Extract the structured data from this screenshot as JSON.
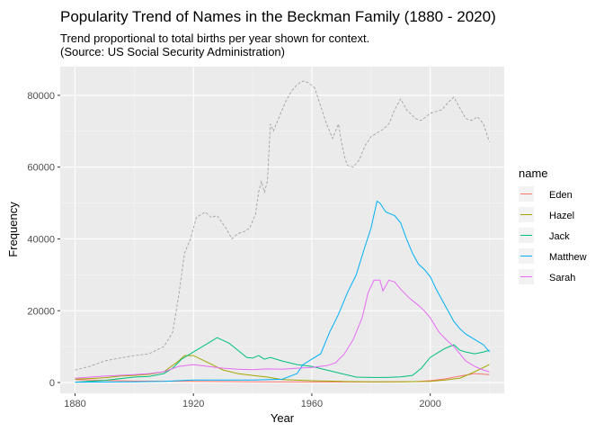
{
  "chart_data": {
    "type": "line",
    "title": "Popularity Trend of Names in the Beckman Family (1880 - 2020)",
    "subtitle_lines": [
      "Trend proportional to total births per year shown for context.",
      "(Source: US Social Security Administration)"
    ],
    "xlabel": "Year",
    "ylabel": "Frequency",
    "xlim": [
      1875,
      2025
    ],
    "ylim": [
      -3000,
      88000
    ],
    "x_ticks": [
      1880,
      1920,
      1960,
      2000
    ],
    "y_ticks": [
      0,
      20000,
      40000,
      60000,
      80000
    ],
    "y_tick_labels": [
      "0",
      "20000",
      "40000",
      "60000",
      "80000"
    ],
    "grid": true,
    "legend": {
      "title": "name",
      "position": "right"
    },
    "context_series": {
      "style": "dashed",
      "color": "#999999",
      "points": [
        [
          1880,
          3500
        ],
        [
          1885,
          4500
        ],
        [
          1890,
          6000
        ],
        [
          1895,
          6800
        ],
        [
          1900,
          7500
        ],
        [
          1905,
          8000
        ],
        [
          1910,
          10000
        ],
        [
          1913,
          14000
        ],
        [
          1915,
          24000
        ],
        [
          1917,
          36000
        ],
        [
          1919,
          40000
        ],
        [
          1921,
          46000
        ],
        [
          1924,
          47500
        ],
        [
          1926,
          46000
        ],
        [
          1928,
          46500
        ],
        [
          1931,
          43000
        ],
        [
          1933,
          40000
        ],
        [
          1935,
          41500
        ],
        [
          1937,
          42000
        ],
        [
          1939,
          43000
        ],
        [
          1941,
          47000
        ],
        [
          1942,
          53000
        ],
        [
          1943,
          56000
        ],
        [
          1944,
          53000
        ],
        [
          1945,
          56000
        ],
        [
          1946,
          72000
        ],
        [
          1947,
          70000
        ],
        [
          1949,
          74000
        ],
        [
          1951,
          78000
        ],
        [
          1953,
          81000
        ],
        [
          1955,
          83000
        ],
        [
          1957,
          84000
        ],
        [
          1959,
          83500
        ],
        [
          1961,
          82000
        ],
        [
          1963,
          77000
        ],
        [
          1965,
          72000
        ],
        [
          1967,
          68000
        ],
        [
          1968,
          70000
        ],
        [
          1969,
          72000
        ],
        [
          1970,
          67000
        ],
        [
          1971,
          63000
        ],
        [
          1972,
          60500
        ],
        [
          1974,
          60000
        ],
        [
          1976,
          62000
        ],
        [
          1978,
          66000
        ],
        [
          1980,
          68500
        ],
        [
          1982,
          69500
        ],
        [
          1984,
          70500
        ],
        [
          1986,
          72000
        ],
        [
          1988,
          76000
        ],
        [
          1990,
          79000
        ],
        [
          1992,
          76000
        ],
        [
          1995,
          73500
        ],
        [
          1997,
          73000
        ],
        [
          2000,
          75000
        ],
        [
          2002,
          75500
        ],
        [
          2004,
          76000
        ],
        [
          2006,
          78000
        ],
        [
          2008,
          79500
        ],
        [
          2010,
          76500
        ],
        [
          2012,
          73500
        ],
        [
          2014,
          73000
        ],
        [
          2016,
          74000
        ],
        [
          2018,
          72000
        ],
        [
          2020,
          67000
        ]
      ]
    },
    "series": [
      {
        "name": "Eden",
        "color": "#F8766D",
        "points": [
          [
            1880,
            800
          ],
          [
            1890,
            600
          ],
          [
            1900,
            400
          ],
          [
            1920,
            300
          ],
          [
            1940,
            200
          ],
          [
            1960,
            150
          ],
          [
            1980,
            150
          ],
          [
            1995,
            250
          ],
          [
            2000,
            500
          ],
          [
            2005,
            1000
          ],
          [
            2010,
            1800
          ],
          [
            2015,
            2500
          ],
          [
            2020,
            2200
          ]
        ]
      },
      {
        "name": "Hazel",
        "color": "#A3A500",
        "points": [
          [
            1880,
            900
          ],
          [
            1890,
            1300
          ],
          [
            1895,
            1800
          ],
          [
            1900,
            2000
          ],
          [
            1905,
            2300
          ],
          [
            1910,
            3000
          ],
          [
            1915,
            6000
          ],
          [
            1917,
            7500
          ],
          [
            1920,
            7500
          ],
          [
            1925,
            5500
          ],
          [
            1930,
            3500
          ],
          [
            1935,
            2500
          ],
          [
            1940,
            2000
          ],
          [
            1945,
            1500
          ],
          [
            1950,
            800
          ],
          [
            1960,
            500
          ],
          [
            1970,
            300
          ],
          [
            1980,
            200
          ],
          [
            1990,
            200
          ],
          [
            2000,
            300
          ],
          [
            2005,
            700
          ],
          [
            2010,
            1200
          ],
          [
            2015,
            3000
          ],
          [
            2020,
            5000
          ]
        ]
      },
      {
        "name": "Jack",
        "color": "#00BF7D",
        "points": [
          [
            1880,
            100
          ],
          [
            1890,
            600
          ],
          [
            1900,
            1500
          ],
          [
            1905,
            1700
          ],
          [
            1910,
            2500
          ],
          [
            1913,
            4000
          ],
          [
            1916,
            6500
          ],
          [
            1920,
            8500
          ],
          [
            1925,
            11000
          ],
          [
            1928,
            12500
          ],
          [
            1932,
            11000
          ],
          [
            1935,
            9000
          ],
          [
            1938,
            7000
          ],
          [
            1940,
            6800
          ],
          [
            1942,
            7500
          ],
          [
            1944,
            6500
          ],
          [
            1946,
            7000
          ],
          [
            1950,
            6000
          ],
          [
            1955,
            5000
          ],
          [
            1960,
            4500
          ],
          [
            1965,
            3500
          ],
          [
            1970,
            2500
          ],
          [
            1975,
            1500
          ],
          [
            1980,
            1400
          ],
          [
            1985,
            1400
          ],
          [
            1990,
            1600
          ],
          [
            1994,
            2000
          ],
          [
            1997,
            4000
          ],
          [
            2000,
            7000
          ],
          [
            2003,
            8500
          ],
          [
            2005,
            9500
          ],
          [
            2008,
            10500
          ],
          [
            2010,
            9000
          ],
          [
            2012,
            8500
          ],
          [
            2015,
            8000
          ],
          [
            2018,
            8500
          ],
          [
            2020,
            9000
          ]
        ]
      },
      {
        "name": "Matthew",
        "color": "#00B0F6",
        "points": [
          [
            1880,
            100
          ],
          [
            1900,
            200
          ],
          [
            1910,
            300
          ],
          [
            1915,
            500
          ],
          [
            1920,
            700
          ],
          [
            1940,
            700
          ],
          [
            1950,
            900
          ],
          [
            1955,
            2500
          ],
          [
            1957,
            5000
          ],
          [
            1960,
            6500
          ],
          [
            1963,
            8000
          ],
          [
            1966,
            14000
          ],
          [
            1969,
            19000
          ],
          [
            1972,
            25000
          ],
          [
            1975,
            30000
          ],
          [
            1978,
            38000
          ],
          [
            1980,
            43000
          ],
          [
            1982,
            50500
          ],
          [
            1983,
            50000
          ],
          [
            1985,
            47500
          ],
          [
            1988,
            46500
          ],
          [
            1990,
            44500
          ],
          [
            1992,
            40000
          ],
          [
            1994,
            36000
          ],
          [
            1996,
            33000
          ],
          [
            1998,
            31500
          ],
          [
            2000,
            29500
          ],
          [
            2002,
            26000
          ],
          [
            2004,
            23000
          ],
          [
            2006,
            20000
          ],
          [
            2008,
            17000
          ],
          [
            2010,
            15000
          ],
          [
            2012,
            13500
          ],
          [
            2015,
            12000
          ],
          [
            2018,
            10500
          ],
          [
            2020,
            8500
          ]
        ]
      },
      {
        "name": "Sarah",
        "color": "#E76BF3",
        "points": [
          [
            1880,
            1200
          ],
          [
            1885,
            1500
          ],
          [
            1890,
            1800
          ],
          [
            1900,
            2200
          ],
          [
            1905,
            2500
          ],
          [
            1910,
            3000
          ],
          [
            1915,
            4500
          ],
          [
            1920,
            5000
          ],
          [
            1925,
            4500
          ],
          [
            1930,
            4000
          ],
          [
            1935,
            3700
          ],
          [
            1940,
            3600
          ],
          [
            1945,
            3800
          ],
          [
            1950,
            3700
          ],
          [
            1955,
            4000
          ],
          [
            1960,
            4200
          ],
          [
            1965,
            4700
          ],
          [
            1968,
            5500
          ],
          [
            1971,
            8000
          ],
          [
            1974,
            12000
          ],
          [
            1977,
            18000
          ],
          [
            1979,
            25000
          ],
          [
            1981,
            28500
          ],
          [
            1983,
            28500
          ],
          [
            1984,
            25500
          ],
          [
            1986,
            28500
          ],
          [
            1988,
            28000
          ],
          [
            1990,
            26000
          ],
          [
            1993,
            23500
          ],
          [
            1996,
            21500
          ],
          [
            1998,
            20000
          ],
          [
            2000,
            18000
          ],
          [
            2003,
            14000
          ],
          [
            2006,
            11500
          ],
          [
            2008,
            10000
          ],
          [
            2010,
            8000
          ],
          [
            2012,
            6000
          ],
          [
            2015,
            4500
          ],
          [
            2018,
            3500
          ],
          [
            2020,
            3000
          ]
        ]
      }
    ]
  }
}
